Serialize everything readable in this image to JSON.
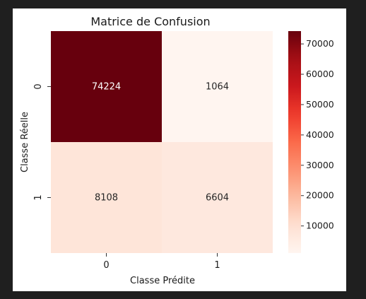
{
  "chart_data": {
    "type": "heatmap",
    "title": "Matrice de Confusion",
    "xlabel": "Classe Prédite",
    "ylabel": "Classe Réelle",
    "x_categories": [
      "0",
      "1"
    ],
    "y_categories": [
      "0",
      "1"
    ],
    "values": [
      [
        74224,
        1064
      ],
      [
        8108,
        6604
      ]
    ],
    "colormap": "Reds",
    "colorbar": {
      "min": 1064,
      "max": 74224,
      "ticks": [
        10000,
        20000,
        30000,
        40000,
        50000,
        60000,
        70000
      ]
    },
    "colors": {
      "low": "#fff5f0",
      "high": "#67000d"
    }
  }
}
